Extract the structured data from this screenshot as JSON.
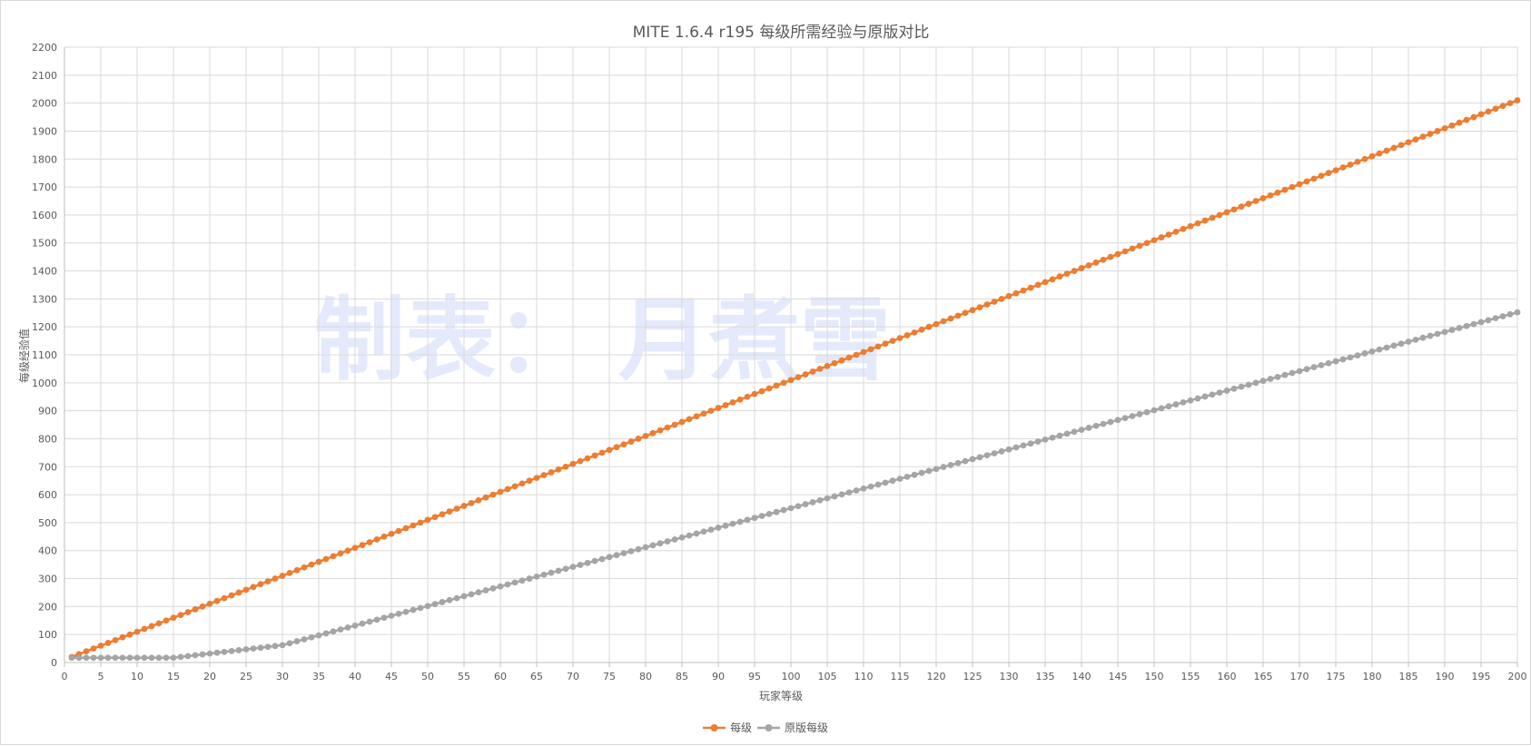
{
  "chart_data": {
    "type": "line",
    "title": "MITE 1.6.4 r195 每级所需经验与原版对比",
    "xlabel": "玩家等级",
    "ylabel": "每级经验值",
    "watermark": "制表： 月煮雪",
    "xlim": [
      0,
      200
    ],
    "ylim": [
      0,
      2200
    ],
    "x_ticks": [
      0,
      5,
      10,
      15,
      20,
      25,
      30,
      35,
      40,
      45,
      50,
      55,
      60,
      65,
      70,
      75,
      80,
      85,
      90,
      95,
      100,
      105,
      110,
      115,
      120,
      125,
      130,
      135,
      140,
      145,
      150,
      155,
      160,
      165,
      170,
      175,
      180,
      185,
      190,
      195,
      200
    ],
    "y_ticks": [
      0,
      100,
      200,
      300,
      400,
      500,
      600,
      700,
      800,
      900,
      1000,
      1100,
      1200,
      1300,
      1400,
      1500,
      1600,
      1700,
      1800,
      1900,
      2000,
      2100,
      2200
    ],
    "grid": true,
    "legend_position": "bottom",
    "x": [
      1,
      2,
      3,
      4,
      5,
      6,
      7,
      8,
      9,
      10,
      11,
      12,
      13,
      14,
      15,
      16,
      17,
      18,
      19,
      20,
      21,
      22,
      23,
      24,
      25,
      26,
      27,
      28,
      29,
      30,
      31,
      32,
      33,
      34,
      35,
      36,
      37,
      38,
      39,
      40,
      41,
      42,
      43,
      44,
      45,
      46,
      47,
      48,
      49,
      50,
      51,
      52,
      53,
      54,
      55,
      56,
      57,
      58,
      59,
      60,
      61,
      62,
      63,
      64,
      65,
      66,
      67,
      68,
      69,
      70,
      71,
      72,
      73,
      74,
      75,
      76,
      77,
      78,
      79,
      80,
      81,
      82,
      83,
      84,
      85,
      86,
      87,
      88,
      89,
      90,
      91,
      92,
      93,
      94,
      95,
      96,
      97,
      98,
      99,
      100,
      101,
      102,
      103,
      104,
      105,
      106,
      107,
      108,
      109,
      110,
      111,
      112,
      113,
      114,
      115,
      116,
      117,
      118,
      119,
      120,
      121,
      122,
      123,
      124,
      125,
      126,
      127,
      128,
      129,
      130,
      131,
      132,
      133,
      134,
      135,
      136,
      137,
      138,
      139,
      140,
      141,
      142,
      143,
      144,
      145,
      146,
      147,
      148,
      149,
      150,
      151,
      152,
      153,
      154,
      155,
      156,
      157,
      158,
      159,
      160,
      161,
      162,
      163,
      164,
      165,
      166,
      167,
      168,
      169,
      170,
      171,
      172,
      173,
      174,
      175,
      176,
      177,
      178,
      179,
      180,
      181,
      182,
      183,
      184,
      185,
      186,
      187,
      188,
      189,
      190,
      191,
      192,
      193,
      194,
      195,
      196,
      197,
      198,
      199,
      200
    ],
    "series": [
      {
        "name": "每级",
        "color": "#ed7d31",
        "values": [
          20,
          30,
          40,
          50,
          60,
          70,
          80,
          90,
          100,
          110,
          120,
          130,
          140,
          150,
          160,
          170,
          180,
          190,
          200,
          210,
          220,
          230,
          240,
          250,
          260,
          270,
          280,
          290,
          300,
          310,
          320,
          330,
          340,
          350,
          360,
          370,
          380,
          390,
          400,
          410,
          420,
          430,
          440,
          450,
          460,
          470,
          480,
          490,
          500,
          510,
          520,
          530,
          540,
          550,
          560,
          570,
          580,
          590,
          600,
          610,
          620,
          630,
          640,
          650,
          660,
          670,
          680,
          690,
          700,
          710,
          720,
          730,
          740,
          750,
          760,
          770,
          780,
          790,
          800,
          810,
          820,
          830,
          840,
          850,
          860,
          870,
          880,
          890,
          900,
          910,
          920,
          930,
          940,
          950,
          960,
          970,
          980,
          990,
          1000,
          1010,
          1020,
          1030,
          1040,
          1050,
          1060,
          1070,
          1080,
          1090,
          1100,
          1110,
          1120,
          1130,
          1140,
          1150,
          1160,
          1170,
          1180,
          1190,
          1200,
          1210,
          1220,
          1230,
          1240,
          1250,
          1260,
          1270,
          1280,
          1290,
          1300,
          1310,
          1320,
          1330,
          1340,
          1350,
          1360,
          1370,
          1380,
          1390,
          1400,
          1410,
          1420,
          1430,
          1440,
          1450,
          1460,
          1470,
          1480,
          1490,
          1500,
          1510,
          1520,
          1530,
          1540,
          1550,
          1560,
          1570,
          1580,
          1590,
          1600,
          1610,
          1620,
          1630,
          1640,
          1650,
          1660,
          1670,
          1680,
          1690,
          1700,
          1710,
          1720,
          1730,
          1740,
          1750,
          1760,
          1770,
          1780,
          1790,
          1800,
          1810,
          1820,
          1830,
          1840,
          1850,
          1860,
          1870,
          1880,
          1890,
          1900,
          1910,
          1920,
          1930,
          1940,
          1950,
          1960,
          1970,
          1980,
          1990,
          2000,
          2010
        ]
      },
      {
        "name": "原版每级",
        "color": "#a5a5a5",
        "values": [
          17,
          17,
          17,
          17,
          17,
          17,
          17,
          17,
          17,
          17,
          17,
          17,
          17,
          17,
          17,
          20,
          23,
          26,
          29,
          32,
          35,
          38,
          41,
          44,
          47,
          50,
          53,
          56,
          59,
          62,
          69,
          76,
          83,
          90,
          97,
          104,
          111,
          118,
          125,
          132,
          139,
          146,
          153,
          160,
          167,
          174,
          181,
          188,
          195,
          202,
          209,
          216,
          223,
          230,
          237,
          244,
          251,
          258,
          265,
          272,
          279,
          286,
          293,
          300,
          307,
          314,
          321,
          328,
          335,
          342,
          349,
          356,
          363,
          370,
          377,
          384,
          391,
          398,
          405,
          412,
          419,
          426,
          433,
          440,
          447,
          454,
          461,
          468,
          475,
          482,
          489,
          496,
          503,
          510,
          517,
          524,
          531,
          538,
          545,
          552,
          559,
          566,
          573,
          580,
          587,
          594,
          601,
          608,
          615,
          622,
          629,
          636,
          643,
          650,
          657,
          664,
          671,
          678,
          685,
          692,
          699,
          706,
          713,
          720,
          727,
          734,
          741,
          748,
          755,
          762,
          769,
          776,
          783,
          790,
          797,
          804,
          811,
          818,
          825,
          832,
          839,
          846,
          853,
          860,
          867,
          874,
          881,
          888,
          895,
          902,
          909,
          916,
          923,
          930,
          937,
          944,
          951,
          958,
          965,
          972,
          979,
          986,
          993,
          1000,
          1007,
          1014,
          1021,
          1028,
          1035,
          1042,
          1049,
          1056,
          1063,
          1070,
          1077,
          1084,
          1091,
          1098,
          1105,
          1112,
          1119,
          1126,
          1133,
          1140,
          1147,
          1154,
          1161,
          1168,
          1175,
          1182,
          1189,
          1196,
          1203,
          1210,
          1217,
          1224,
          1231,
          1238,
          1245,
          1252
        ]
      }
    ]
  }
}
